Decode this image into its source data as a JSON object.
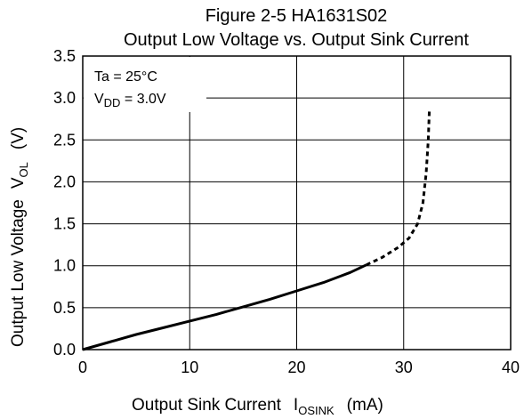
{
  "chart_data": {
    "type": "line",
    "title": "Figure 2-5   HA1631S02",
    "subtitle": "Output Low Voltage vs. Output Sink Current",
    "xlabel": {
      "main": "Output Sink Current",
      "symbol": "I",
      "subscript": "OSINK",
      "unit": "(mA)"
    },
    "ylabel": {
      "main": "Output Low Voltage",
      "symbol": "V",
      "subscript": "OL",
      "unit": "(V)"
    },
    "conditions": [
      {
        "text": "Ta = 25°C"
      },
      {
        "symbol": "V",
        "subscript": "DD",
        "value": " = 3.0V"
      }
    ],
    "xlim": [
      0,
      40
    ],
    "ylim": [
      0,
      3.5
    ],
    "x_ticks": [
      "0",
      "10",
      "20",
      "30",
      "40"
    ],
    "y_ticks": [
      "0.0",
      "0.5",
      "1.0",
      "1.5",
      "2.0",
      "2.5",
      "3.0",
      "3.5"
    ],
    "grid": true,
    "series": [
      {
        "style": "solid",
        "x": [
          0,
          2.5,
          5,
          7.5,
          10,
          12.5,
          15,
          17.5,
          20,
          22.5,
          25,
          26.5
        ],
        "y": [
          0,
          0.09,
          0.18,
          0.26,
          0.34,
          0.42,
          0.51,
          0.6,
          0.7,
          0.8,
          0.92,
          1.01
        ]
      },
      {
        "style": "dashed",
        "x": [
          26.5,
          28,
          29.5,
          30.5,
          31.3,
          31.8,
          32.1,
          32.3,
          32.4
        ],
        "y": [
          1.01,
          1.1,
          1.22,
          1.33,
          1.5,
          1.75,
          2.1,
          2.5,
          2.85
        ]
      }
    ]
  }
}
